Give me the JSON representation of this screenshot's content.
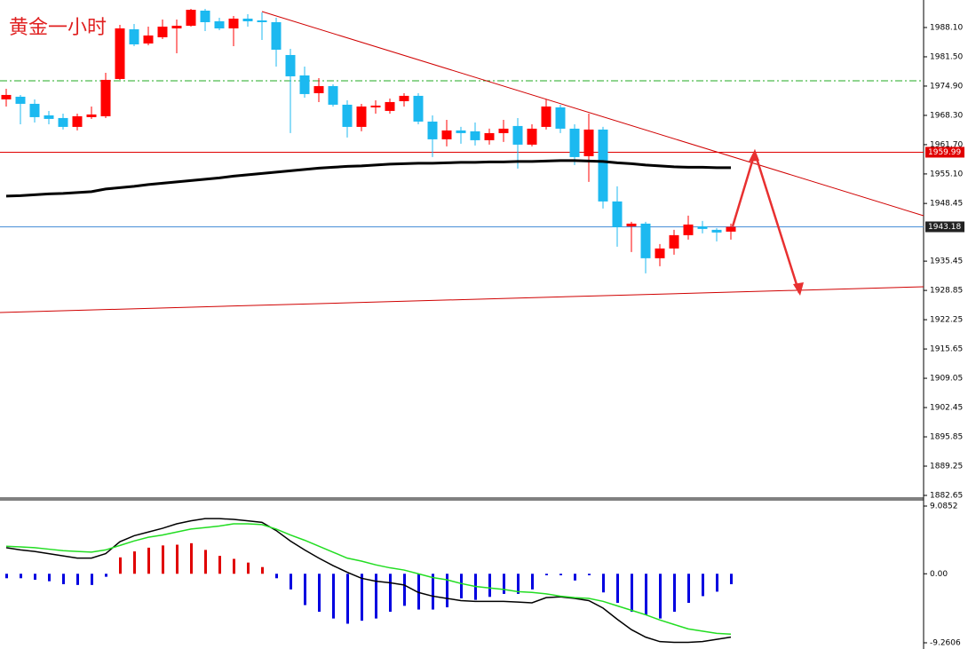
{
  "chart_data": [
    {
      "type": "candlestick",
      "title": "黄金一小时",
      "open": [
        1971.9,
        1972.5,
        1970.9,
        1968.3,
        1967.7,
        1965.7,
        1967.9,
        1968.1,
        1976.5,
        1987.7,
        1984.5,
        1985.9,
        1987.9,
        1988.5,
        1991.9,
        1989.5,
        1987.9,
        1990.1,
        1989.7,
        1989.3,
        1981.9,
        1977.3,
        1973.3,
        1974.9,
        1970.7,
        1965.7,
        1970.1,
        1969.3,
        1971.5,
        1972.7,
        1966.9,
        1962.9,
        1964.9,
        1964.7,
        1962.7,
        1964.3,
        1965.9,
        1961.7,
        1965.7,
        1970.1,
        1965.3,
        1959.1,
        1965.1,
        1948.9,
        1943.3,
        1943.9,
        1936.1,
        1938.3,
        1941.3,
        1943.3,
        1942.5,
        1942.1
      ],
      "high": [
        1974.3,
        1972.9,
        1971.9,
        1969.3,
        1968.7,
        1968.7,
        1970.3,
        1977.9,
        1988.7,
        1988.9,
        1988.3,
        1989.9,
        1989.9,
        1992.3,
        1992.3,
        1990.3,
        1990.7,
        1991.1,
        1991.5,
        1990.3,
        1983.3,
        1979.3,
        1976.7,
        1975.3,
        1971.7,
        1970.9,
        1971.7,
        1972.1,
        1973.3,
        1973.3,
        1968.3,
        1967.3,
        1965.7,
        1966.7,
        1965.3,
        1967.3,
        1967.7,
        1966.3,
        1971.9,
        1970.7,
        1966.3,
        1968.7,
        1965.7,
        1952.3,
        1944.3,
        1944.3,
        1939.3,
        1942.5,
        1945.7,
        1944.5,
        1942.9,
        1943.9
      ],
      "low": [
        1970.3,
        1966.3,
        1966.7,
        1966.3,
        1965.1,
        1964.9,
        1967.5,
        1967.7,
        1976.3,
        1983.9,
        1984.1,
        1985.5,
        1982.3,
        1988.3,
        1987.3,
        1987.5,
        1983.9,
        1988.3,
        1985.3,
        1979.3,
        1964.3,
        1972.3,
        1971.3,
        1970.3,
        1963.3,
        1964.7,
        1968.7,
        1968.7,
        1970.3,
        1966.3,
        1958.9,
        1961.3,
        1961.9,
        1961.5,
        1961.7,
        1962.3,
        1956.3,
        1961.3,
        1965.1,
        1964.3,
        1957.1,
        1953.3,
        1947.3,
        1938.7,
        1937.5,
        1932.7,
        1934.3,
        1936.9,
        1940.3,
        1941.7,
        1939.9,
        1940.3
      ],
      "close": [
        1972.9,
        1970.9,
        1967.9,
        1967.5,
        1965.7,
        1968.1,
        1968.5,
        1976.3,
        1987.9,
        1984.3,
        1986.3,
        1988.3,
        1988.5,
        1992.1,
        1989.3,
        1987.9,
        1990.1,
        1989.5,
        1989.3,
        1983.1,
        1977.1,
        1973.1,
        1974.9,
        1970.7,
        1965.7,
        1970.3,
        1970.5,
        1971.3,
        1972.7,
        1966.9,
        1962.9,
        1964.9,
        1964.3,
        1962.7,
        1964.3,
        1965.3,
        1961.7,
        1965.3,
        1970.3,
        1965.3,
        1958.9,
        1965.1,
        1948.9,
        1943.1,
        1943.9,
        1936.1,
        1938.3,
        1941.3,
        1943.7,
        1942.7,
        1941.9,
        1943.18
      ],
      "up_color": "#ff0000",
      "down_color": "#1cb9f0",
      "ma": {
        "color": "#000000",
        "values": [
          1950.1,
          1950.2,
          1950.4,
          1950.6,
          1950.7,
          1950.9,
          1951.1,
          1951.7,
          1952.0,
          1952.3,
          1952.7,
          1953.0,
          1953.3,
          1953.6,
          1953.9,
          1954.2,
          1954.6,
          1954.9,
          1955.2,
          1955.5,
          1955.8,
          1956.1,
          1956.4,
          1956.6,
          1956.8,
          1956.9,
          1957.1,
          1957.3,
          1957.4,
          1957.5,
          1957.5,
          1957.6,
          1957.7,
          1957.7,
          1957.8,
          1957.8,
          1957.9,
          1957.9,
          1958.0,
          1958.1,
          1958.1,
          1958.0,
          1957.9,
          1957.6,
          1957.4,
          1957.1,
          1956.9,
          1956.7,
          1956.6,
          1956.6,
          1956.5,
          1956.5
        ]
      },
      "price_lines": [
        {
          "value": 1959.99,
          "color": "#e00000"
        },
        {
          "value": 1943.18,
          "color": "#4a8fd8"
        }
      ],
      "ylim": [
        1882.05,
        1994.3
      ],
      "yticks": [
        {
          "value": 1988.1,
          "label": "1988.10"
        },
        {
          "value": 1981.5,
          "label": "1981.50"
        },
        {
          "value": 1974.9,
          "label": "1974.90"
        },
        {
          "value": 1968.3,
          "label": "1968.30"
        },
        {
          "value": 1961.7,
          "label": "1961.70"
        },
        {
          "value": 1955.1,
          "label": "1955.10"
        },
        1948.45,
        1935.45,
        1928.85,
        1922.25,
        1915.65,
        1909.05,
        1902.45,
        1895.85,
        1889.25,
        1882.65
      ]
    },
    {
      "type": "macd",
      "histogram": [
        -0.6,
        -0.6,
        -0.8,
        -1.0,
        -1.4,
        -1.5,
        -1.5,
        -0.4,
        2.2,
        3.0,
        3.5,
        3.8,
        3.9,
        4.1,
        3.2,
        2.4,
        2.0,
        1.5,
        0.9,
        -0.6,
        -2.1,
        -4.2,
        -5.1,
        -6.0,
        -6.7,
        -6.3,
        -6.0,
        -5.1,
        -4.3,
        -4.8,
        -4.8,
        -4.5,
        -3.3,
        -3.5,
        -3.1,
        -2.7,
        -2.7,
        -2.1,
        -0.2,
        -0.2,
        -0.9,
        -0.2,
        -2.5,
        -3.9,
        -5.1,
        -5.5,
        -6.0,
        -5.1,
        -3.9,
        -3.0,
        -2.4,
        -1.4
      ],
      "pos_color": "#e00000",
      "neg_color": "#0000e0",
      "series": [
        {
          "color": "#000000",
          "values": [
            3.5,
            3.2,
            3.0,
            2.7,
            2.4,
            2.1,
            2.1,
            2.7,
            4.3,
            5.1,
            5.6,
            6.1,
            6.7,
            7.1,
            7.4,
            7.4,
            7.3,
            7.1,
            6.9,
            5.8,
            4.4,
            3.2,
            2.1,
            1.1,
            0.2,
            -0.6,
            -1.0,
            -1.2,
            -1.5,
            -2.5,
            -3.0,
            -3.3,
            -3.6,
            -3.7,
            -3.7,
            -3.7,
            -3.8,
            -3.9,
            -3.2,
            -3.1,
            -3.3,
            -3.6,
            -4.6,
            -6.1,
            -7.5,
            -8.5,
            -9.1,
            -9.2,
            -9.2,
            -9.1,
            -8.8,
            -8.5
          ]
        },
        {
          "color": "#22dd22",
          "values": [
            3.7,
            3.6,
            3.5,
            3.3,
            3.1,
            3.0,
            2.9,
            3.2,
            3.8,
            4.4,
            4.9,
            5.2,
            5.6,
            6.0,
            6.2,
            6.4,
            6.7,
            6.7,
            6.6,
            6.0,
            5.2,
            4.5,
            3.7,
            2.9,
            2.1,
            1.7,
            1.2,
            0.8,
            0.5,
            0.0,
            -0.5,
            -0.8,
            -1.3,
            -1.7,
            -1.9,
            -2.1,
            -2.4,
            -2.5,
            -2.7,
            -3.0,
            -3.2,
            -3.3,
            -3.7,
            -4.3,
            -4.9,
            -5.5,
            -6.2,
            -6.8,
            -7.4,
            -7.7,
            -8.0,
            -8.1
          ]
        }
      ],
      "ylim": [
        -10.094,
        9.919
      ],
      "yticks": [
        9.0852,
        {
          "value": 0,
          "label": "0.00"
        },
        -9.2606
      ]
    }
  ]
}
